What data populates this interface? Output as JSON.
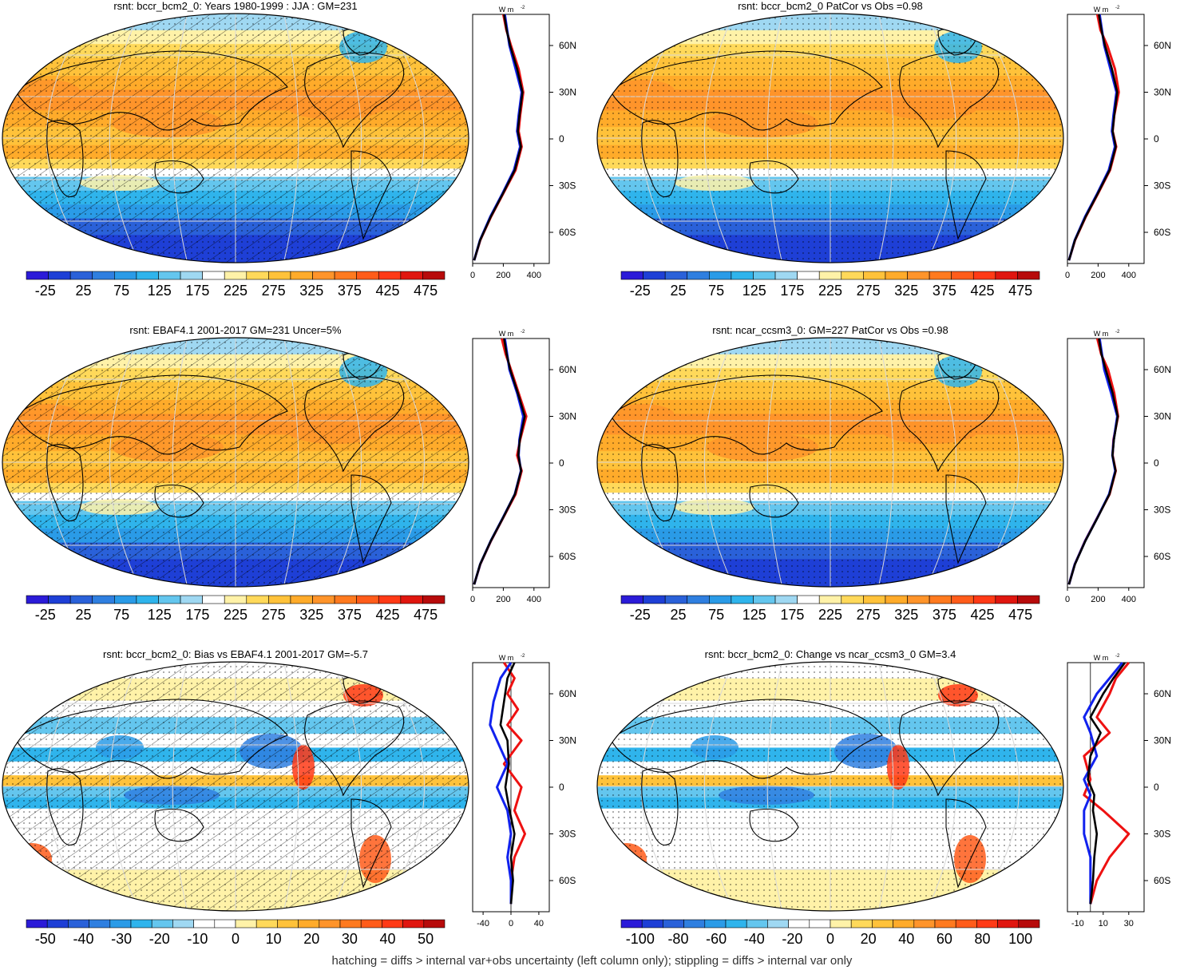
{
  "panels": [
    {
      "id": "p1",
      "title": "rsnt: bccr_bcm2_0: Years 1980-1999 : JJA : GM=231",
      "colorbar_labels": [
        "-25",
        "25",
        "75",
        "125",
        "175",
        "225",
        "275",
        "325",
        "375",
        "425",
        "475"
      ],
      "palette": "abs",
      "hatching": true,
      "profile": {
        "unit": "W m",
        "unit_exp": "-2",
        "x_ticks": [
          "0",
          "200",
          "400"
        ],
        "lat_labels": [
          "60N",
          "30N",
          "0",
          "30S",
          "60S"
        ],
        "red": [
          [
            200,
            80
          ],
          [
            220,
            70
          ],
          [
            250,
            60
          ],
          [
            300,
            45
          ],
          [
            330,
            30
          ],
          [
            310,
            15
          ],
          [
            300,
            5
          ],
          [
            320,
            -5
          ],
          [
            280,
            -20
          ],
          [
            200,
            -35
          ],
          [
            120,
            -50
          ],
          [
            50,
            -65
          ],
          [
            10,
            -78
          ]
        ],
        "blue": [
          [
            210,
            80
          ],
          [
            225,
            70
          ],
          [
            240,
            60
          ],
          [
            280,
            45
          ],
          [
            320,
            30
          ],
          [
            300,
            15
          ],
          [
            290,
            5
          ],
          [
            310,
            -5
          ],
          [
            270,
            -20
          ],
          [
            195,
            -35
          ],
          [
            115,
            -50
          ],
          [
            48,
            -65
          ],
          [
            10,
            -78
          ]
        ],
        "black": [
          [
            205,
            80
          ],
          [
            222,
            70
          ],
          [
            245,
            60
          ],
          [
            290,
            45
          ],
          [
            325,
            30
          ],
          [
            305,
            15
          ],
          [
            295,
            5
          ],
          [
            315,
            -5
          ],
          [
            275,
            -20
          ],
          [
            198,
            -35
          ],
          [
            118,
            -50
          ],
          [
            49,
            -65
          ],
          [
            10,
            -78
          ]
        ],
        "xmin": 0,
        "xmax": 500
      }
    },
    {
      "id": "p2",
      "title": "rsnt: bccr_bcm2_0 PatCor vs Obs =0.98",
      "colorbar_labels": [
        "-25",
        "25",
        "75",
        "125",
        "175",
        "225",
        "275",
        "325",
        "375",
        "425",
        "475"
      ],
      "palette": "abs",
      "hatching": false,
      "profile": {
        "unit": "W m",
        "unit_exp": "-2",
        "x_ticks": [
          "0",
          "200",
          "400"
        ],
        "lat_labels": [
          "60N",
          "30N",
          "0",
          "30S",
          "60S"
        ],
        "red": [
          [
            195,
            80
          ],
          [
            215,
            70
          ],
          [
            260,
            60
          ],
          [
            310,
            45
          ],
          [
            335,
            30
          ],
          [
            305,
            15
          ],
          [
            295,
            5
          ],
          [
            318,
            -5
          ],
          [
            278,
            -20
          ],
          [
            200,
            -35
          ],
          [
            120,
            -50
          ],
          [
            50,
            -65
          ],
          [
            10,
            -78
          ]
        ],
        "blue": [
          [
            210,
            80
          ],
          [
            225,
            70
          ],
          [
            240,
            60
          ],
          [
            280,
            45
          ],
          [
            320,
            30
          ],
          [
            300,
            15
          ],
          [
            290,
            5
          ],
          [
            310,
            -5
          ],
          [
            270,
            -20
          ],
          [
            195,
            -35
          ],
          [
            115,
            -50
          ],
          [
            48,
            -65
          ],
          [
            10,
            -78
          ]
        ],
        "black": [
          [
            205,
            80
          ],
          [
            222,
            70
          ],
          [
            245,
            60
          ],
          [
            290,
            45
          ],
          [
            325,
            30
          ],
          [
            305,
            15
          ],
          [
            295,
            5
          ],
          [
            315,
            -5
          ],
          [
            275,
            -20
          ],
          [
            198,
            -35
          ],
          [
            118,
            -50
          ],
          [
            49,
            -65
          ],
          [
            10,
            -78
          ]
        ],
        "xmin": 0,
        "xmax": 500
      }
    },
    {
      "id": "p3",
      "title": "rsnt: EBAF4.1 2001-2017 GM=231 Uncer=5%",
      "colorbar_labels": [
        "-25",
        "25",
        "75",
        "125",
        "175",
        "225",
        "275",
        "325",
        "375",
        "425",
        "475"
      ],
      "palette": "abs",
      "hatching": true,
      "profile": {
        "unit": "W m",
        "unit_exp": "-2",
        "x_ticks": [
          "0",
          "200",
          "400"
        ],
        "lat_labels": [
          "60N",
          "30N",
          "0",
          "30S",
          "60S"
        ],
        "red": [
          [
            190,
            80
          ],
          [
            215,
            70
          ],
          [
            250,
            60
          ],
          [
            300,
            45
          ],
          [
            350,
            30
          ],
          [
            310,
            15
          ],
          [
            290,
            5
          ],
          [
            320,
            -5
          ],
          [
            280,
            -20
          ],
          [
            200,
            -35
          ],
          [
            120,
            -50
          ],
          [
            50,
            -65
          ],
          [
            10,
            -78
          ]
        ],
        "blue": [
          [
            210,
            80
          ],
          [
            225,
            70
          ],
          [
            240,
            60
          ],
          [
            290,
            45
          ],
          [
            330,
            30
          ],
          [
            305,
            15
          ],
          [
            300,
            5
          ],
          [
            315,
            -5
          ],
          [
            275,
            -20
          ],
          [
            198,
            -35
          ],
          [
            118,
            -50
          ],
          [
            49,
            -65
          ],
          [
            10,
            -78
          ]
        ],
        "black": [
          [
            205,
            80
          ],
          [
            222,
            70
          ],
          [
            245,
            60
          ],
          [
            295,
            45
          ],
          [
            340,
            30
          ],
          [
            308,
            15
          ],
          [
            298,
            5
          ],
          [
            316,
            -5
          ],
          [
            276,
            -20
          ],
          [
            199,
            -35
          ],
          [
            119,
            -50
          ],
          [
            49,
            -65
          ],
          [
            10,
            -78
          ]
        ],
        "xmin": 0,
        "xmax": 500
      }
    },
    {
      "id": "p4",
      "title": "rsnt: ncar_ccsm3_0: GM=227 PatCor vs Obs =0.98",
      "colorbar_labels": [
        "-25",
        "25",
        "75",
        "125",
        "175",
        "225",
        "275",
        "325",
        "375",
        "425",
        "475"
      ],
      "palette": "abs",
      "hatching": false,
      "profile": {
        "unit": "W m",
        "unit_exp": "-2",
        "x_ticks": [
          "0",
          "200",
          "400"
        ],
        "lat_labels": [
          "60N",
          "30N",
          "0",
          "30S",
          "60S"
        ],
        "red": [
          [
            195,
            80
          ],
          [
            220,
            70
          ],
          [
            265,
            60
          ],
          [
            305,
            45
          ],
          [
            330,
            30
          ],
          [
            300,
            15
          ],
          [
            295,
            5
          ],
          [
            315,
            -5
          ],
          [
            275,
            -20
          ],
          [
            195,
            -35
          ],
          [
            115,
            -50
          ],
          [
            48,
            -65
          ],
          [
            10,
            -78
          ]
        ],
        "blue": [
          [
            210,
            80
          ],
          [
            225,
            70
          ],
          [
            240,
            60
          ],
          [
            285,
            45
          ],
          [
            325,
            30
          ],
          [
            302,
            15
          ],
          [
            293,
            5
          ],
          [
            312,
            -5
          ],
          [
            272,
            -20
          ],
          [
            196,
            -35
          ],
          [
            116,
            -50
          ],
          [
            48,
            -65
          ],
          [
            10,
            -78
          ]
        ],
        "black": [
          [
            205,
            80
          ],
          [
            222,
            70
          ],
          [
            250,
            60
          ],
          [
            295,
            45
          ],
          [
            328,
            30
          ],
          [
            303,
            15
          ],
          [
            294,
            5
          ],
          [
            314,
            -5
          ],
          [
            274,
            -20
          ],
          [
            197,
            -35
          ],
          [
            117,
            -50
          ],
          [
            49,
            -65
          ],
          [
            10,
            -78
          ]
        ],
        "xmin": 0,
        "xmax": 500
      }
    },
    {
      "id": "p5",
      "title": "rsnt: bccr_bcm2_0: Bias vs EBAF4.1 2001-2017 GM=-5.7",
      "colorbar_labels": [
        "-50",
        "-40",
        "-30",
        "-20",
        "-10",
        "0",
        "10",
        "20",
        "30",
        "40",
        "50"
      ],
      "palette": "diff",
      "hatching": true,
      "profile": {
        "unit": "W m",
        "unit_exp": "-2",
        "x_ticks": [
          "-40",
          "0",
          "40"
        ],
        "lat_labels": [
          "60N",
          "30N",
          "0",
          "30S",
          "60S"
        ],
        "red": [
          [
            -10,
            80
          ],
          [
            5,
            70
          ],
          [
            -5,
            60
          ],
          [
            10,
            50
          ],
          [
            -5,
            40
          ],
          [
            15,
            30
          ],
          [
            -10,
            15
          ],
          [
            15,
            0
          ],
          [
            5,
            -15
          ],
          [
            20,
            -30
          ],
          [
            5,
            -45
          ],
          [
            0,
            -60
          ],
          [
            0,
            -75
          ]
        ],
        "blue": [
          [
            0,
            80
          ],
          [
            -15,
            70
          ],
          [
            -25,
            55
          ],
          [
            -30,
            40
          ],
          [
            -20,
            30
          ],
          [
            -5,
            15
          ],
          [
            -20,
            0
          ],
          [
            -5,
            -15
          ],
          [
            0,
            -30
          ],
          [
            -5,
            -45
          ],
          [
            0,
            -60
          ],
          [
            0,
            -75
          ]
        ],
        "black": [
          [
            5,
            80
          ],
          [
            -5,
            70
          ],
          [
            -10,
            55
          ],
          [
            -15,
            40
          ],
          [
            -5,
            30
          ],
          [
            -3,
            15
          ],
          [
            -8,
            0
          ],
          [
            -2,
            -15
          ],
          [
            5,
            -30
          ],
          [
            0,
            -45
          ],
          [
            3,
            -60
          ],
          [
            0,
            -75
          ]
        ],
        "xmin": -55,
        "xmax": 55
      }
    },
    {
      "id": "p6",
      "title": "rsnt: bccr_bcm2_0: Change vs ncar_ccsm3_0 GM=3.4",
      "colorbar_labels": [
        "-100",
        "-80",
        "-60",
        "-40",
        "-20",
        "0",
        "20",
        "40",
        "60",
        "80",
        "100"
      ],
      "palette": "diff",
      "hatching": false,
      "profile": {
        "unit": "W m",
        "unit_exp": "-2",
        "x_ticks": [
          "-10",
          "10",
          "30"
        ],
        "lat_labels": [
          "60N",
          "30N",
          "0",
          "30S",
          "60S"
        ],
        "red": [
          [
            30,
            80
          ],
          [
            20,
            70
          ],
          [
            15,
            60
          ],
          [
            5,
            45
          ],
          [
            15,
            35
          ],
          [
            -5,
            20
          ],
          [
            0,
            5
          ],
          [
            -5,
            -5
          ],
          [
            10,
            -15
          ],
          [
            30,
            -30
          ],
          [
            15,
            -45
          ],
          [
            5,
            -60
          ],
          [
            0,
            -75
          ]
        ],
        "blue": [
          [
            25,
            80
          ],
          [
            15,
            70
          ],
          [
            5,
            60
          ],
          [
            -5,
            45
          ],
          [
            0,
            35
          ],
          [
            5,
            20
          ],
          [
            -5,
            5
          ],
          [
            0,
            -5
          ],
          [
            -5,
            -15
          ],
          [
            -5,
            -30
          ],
          [
            0,
            -45
          ],
          [
            0,
            -60
          ],
          [
            0,
            -75
          ]
        ],
        "black": [
          [
            27,
            80
          ],
          [
            18,
            70
          ],
          [
            10,
            60
          ],
          [
            0,
            45
          ],
          [
            8,
            35
          ],
          [
            0,
            20
          ],
          [
            -2,
            5
          ],
          [
            3,
            -5
          ],
          [
            2,
            -15
          ],
          [
            5,
            -30
          ],
          [
            3,
            -45
          ],
          [
            2,
            -60
          ],
          [
            0,
            -75
          ]
        ],
        "xmin": -18,
        "xmax": 42
      }
    }
  ],
  "colors": {
    "abs": [
      "#2b1bd8",
      "#1e3fd6",
      "#2a61d9",
      "#2f7fe0",
      "#2a9be7",
      "#2fb4ec",
      "#64c6ee",
      "#9fd8f2",
      "#ffffff",
      "#fff2a8",
      "#ffd95a",
      "#ffc23a",
      "#ffab2a",
      "#ff942a",
      "#ff7a1f",
      "#ff5c1a",
      "#ff3a16",
      "#e0160f",
      "#b70b0b"
    ],
    "diff": [
      "#2b1bd8",
      "#1e3fd6",
      "#2a61d9",
      "#2f7fe0",
      "#2a9be7",
      "#2fb4ec",
      "#64c6ee",
      "#9fd8f2",
      "#ffffff",
      "#ffffff",
      "#fff2a8",
      "#ffd95a",
      "#ffc23a",
      "#ffab2a",
      "#ff942a",
      "#ff7a1f",
      "#ff5c1a",
      "#ff3a16",
      "#e0160f",
      "#b70b0b"
    ],
    "red_line": "#ee1111",
    "blue_line": "#1122ee",
    "black_line": "#000000"
  },
  "footer": "hatching = diffs > internal var+obs uncertainty (left column only); stippling = diffs > internal var only"
}
